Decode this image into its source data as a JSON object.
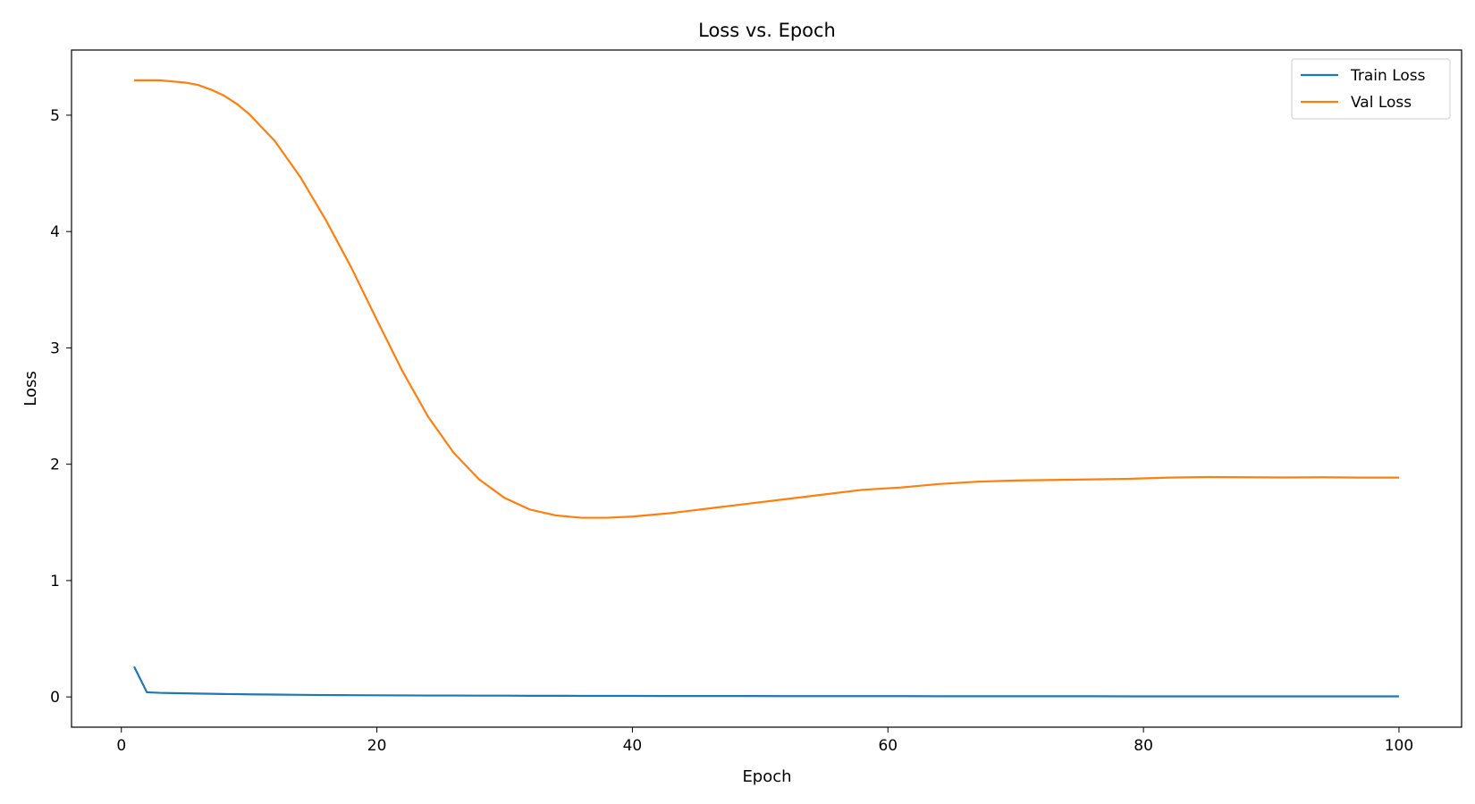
{
  "chart_data": {
    "type": "line",
    "title": "Loss vs. Epoch",
    "xlabel": "Epoch",
    "ylabel": "Loss",
    "xlim": [
      -3.9,
      104.9
    ],
    "ylim": [
      -0.26,
      5.56
    ],
    "xticks": [
      0,
      20,
      40,
      60,
      80,
      100
    ],
    "yticks": [
      0,
      1,
      2,
      3,
      4,
      5
    ],
    "grid": false,
    "legend_position": "top-right",
    "x": [
      1,
      2,
      3,
      4,
      5,
      6,
      7,
      8,
      9,
      10,
      12,
      14,
      16,
      18,
      20,
      22,
      24,
      26,
      28,
      30,
      32,
      34,
      36,
      38,
      40,
      43,
      46,
      49,
      52,
      55,
      58,
      61,
      64,
      67,
      70,
      73,
      76,
      79,
      82,
      85,
      88,
      91,
      94,
      97,
      100
    ],
    "series": [
      {
        "name": "Train Loss",
        "color": "#1f77b4",
        "values": [
          0.26,
          0.04,
          0.035,
          0.033,
          0.031,
          0.029,
          0.027,
          0.025,
          0.024,
          0.022,
          0.02,
          0.018,
          0.016,
          0.015,
          0.014,
          0.013,
          0.012,
          0.012,
          0.011,
          0.011,
          0.01,
          0.01,
          0.009,
          0.009,
          0.009,
          0.008,
          0.008,
          0.008,
          0.007,
          0.007,
          0.007,
          0.007,
          0.006,
          0.006,
          0.006,
          0.006,
          0.006,
          0.005,
          0.005,
          0.005,
          0.005,
          0.005,
          0.005,
          0.005,
          0.005
        ]
      },
      {
        "name": "Val Loss",
        "color": "#ff7f0e",
        "values": [
          5.3,
          5.3,
          5.3,
          5.29,
          5.28,
          5.26,
          5.22,
          5.17,
          5.1,
          5.01,
          4.78,
          4.47,
          4.1,
          3.69,
          3.24,
          2.8,
          2.41,
          2.1,
          1.87,
          1.71,
          1.61,
          1.56,
          1.54,
          1.54,
          1.55,
          1.58,
          1.62,
          1.66,
          1.7,
          1.74,
          1.78,
          1.8,
          1.83,
          1.85,
          1.86,
          1.865,
          1.87,
          1.875,
          1.885,
          1.89,
          1.888,
          1.886,
          1.888,
          1.885,
          1.885
        ]
      }
    ]
  }
}
